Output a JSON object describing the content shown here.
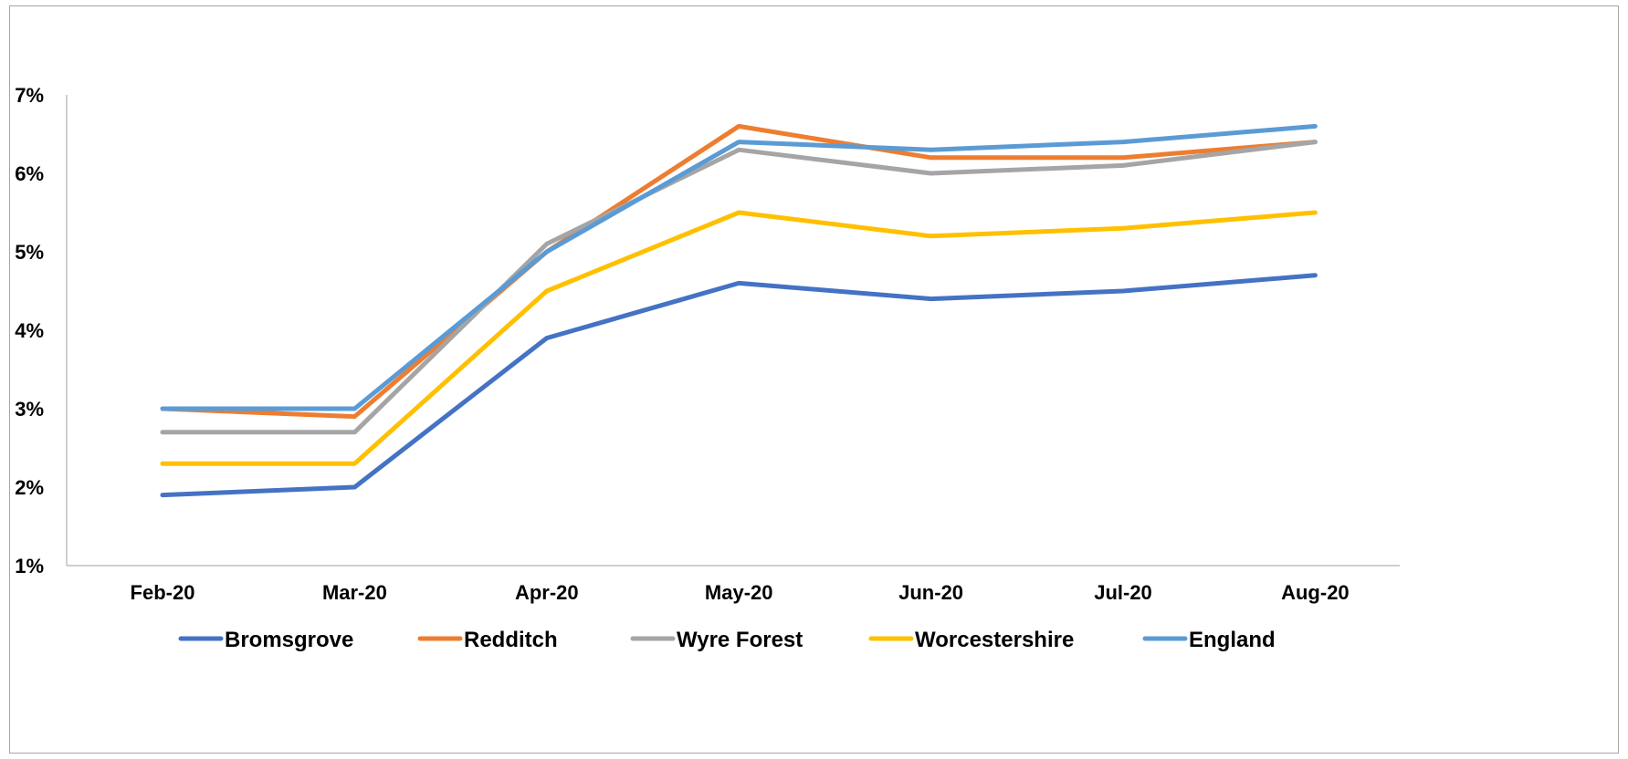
{
  "chart_data": {
    "type": "line",
    "title": "",
    "xlabel": "",
    "ylabel": "",
    "categories": [
      "Feb-20",
      "Mar-20",
      "Apr-20",
      "May-20",
      "Jun-20",
      "Jul-20",
      "Aug-20"
    ],
    "y_ticks": [
      "1%",
      "2%",
      "3%",
      "4%",
      "5%",
      "6%",
      "7%"
    ],
    "ylim": [
      1,
      7
    ],
    "y_unit": "%",
    "grid": false,
    "legend_position": "bottom",
    "series": [
      {
        "name": "Bromsgrove",
        "color": "#4472c4",
        "values": [
          1.9,
          2.0,
          3.9,
          4.6,
          4.4,
          4.5,
          4.7
        ]
      },
      {
        "name": "Redditch",
        "color": "#ed7d31",
        "values": [
          3.0,
          2.9,
          5.0,
          6.6,
          6.2,
          6.2,
          6.4
        ]
      },
      {
        "name": "Wyre Forest",
        "color": "#a5a5a5",
        "values": [
          2.7,
          2.7,
          5.1,
          6.3,
          6.0,
          6.1,
          6.4
        ]
      },
      {
        "name": "Worcestershire",
        "color": "#ffc000",
        "values": [
          2.3,
          2.3,
          4.5,
          5.5,
          5.2,
          5.3,
          5.5
        ]
      },
      {
        "name": "England",
        "color": "#5b9bd5",
        "values": [
          3.0,
          3.0,
          5.0,
          6.4,
          6.3,
          6.4,
          6.6
        ]
      }
    ]
  }
}
